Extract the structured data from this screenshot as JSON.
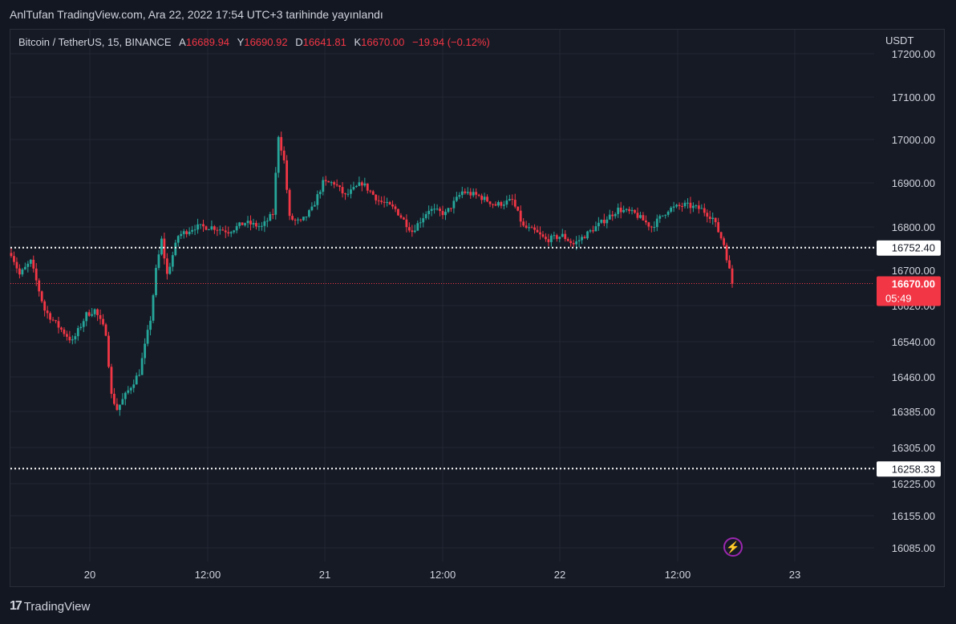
{
  "header": {
    "published": "AnlTufan TradingView.com, Ara 22, 2022 17:54 UTC+3 tarihinde yayınlandı"
  },
  "legend": {
    "symbol": "Bitcoin / TetherUS, 15, BINANCE",
    "open_label": "A",
    "open": "16689.94",
    "high_label": "Y",
    "high": "16690.92",
    "low_label": "D",
    "low": "16641.81",
    "close_label": "K",
    "close": "16670.00",
    "change": "−19.94 (−0.12%)"
  },
  "currency": "USDT",
  "footer": {
    "brand": "TradingView"
  },
  "colors": {
    "up": "#26a69a",
    "down": "#f23645",
    "background": "#161a25",
    "grid": "#232732",
    "level_line": "#ffffff",
    "price_tag": "#f23645"
  },
  "chart_data": {
    "type": "candlestick",
    "price_axis": {
      "ticks": [
        "17200.00",
        "17100.00",
        "17000.00",
        "16900.00",
        "16800.00",
        "16700.00",
        "16620.00",
        "16540.00",
        "16460.00",
        "16385.00",
        "16305.00",
        "16225.00",
        "16155.00",
        "16085.00"
      ],
      "scale": "non-linear"
    },
    "time_axis": {
      "ticks": [
        "20",
        "12:00",
        "21",
        "12:00",
        "22",
        "12:00",
        "23"
      ]
    },
    "levels": [
      {
        "label": "16752.40",
        "value": 16752.4,
        "style": "dotted"
      },
      {
        "label": "16258.33",
        "value": 16258.33,
        "style": "dotted"
      }
    ],
    "last_price": {
      "label": "16670.00",
      "countdown": "05:49",
      "value": 16670.0
    },
    "anchors": [
      {
        "t": 0,
        "p": 16740
      },
      {
        "t": 3,
        "p": 16690
      },
      {
        "t": 7,
        "p": 16720
      },
      {
        "t": 12,
        "p": 16610
      },
      {
        "t": 16,
        "p": 16580
      },
      {
        "t": 22,
        "p": 16540
      },
      {
        "t": 27,
        "p": 16600
      },
      {
        "t": 30,
        "p": 16610
      },
      {
        "t": 34,
        "p": 16560
      },
      {
        "t": 36,
        "p": 16420
      },
      {
        "t": 38,
        "p": 16390
      },
      {
        "t": 42,
        "p": 16430
      },
      {
        "t": 46,
        "p": 16470
      },
      {
        "t": 50,
        "p": 16590
      },
      {
        "t": 52,
        "p": 16700
      },
      {
        "t": 54,
        "p": 16770
      },
      {
        "t": 56,
        "p": 16690
      },
      {
        "t": 60,
        "p": 16780
      },
      {
        "t": 66,
        "p": 16800
      },
      {
        "t": 72,
        "p": 16800
      },
      {
        "t": 78,
        "p": 16790
      },
      {
        "t": 84,
        "p": 16810
      },
      {
        "t": 90,
        "p": 16800
      },
      {
        "t": 94,
        "p": 16830
      },
      {
        "t": 96,
        "p": 17010
      },
      {
        "t": 98,
        "p": 16950
      },
      {
        "t": 100,
        "p": 16820
      },
      {
        "t": 104,
        "p": 16810
      },
      {
        "t": 108,
        "p": 16840
      },
      {
        "t": 112,
        "p": 16900
      },
      {
        "t": 116,
        "p": 16900
      },
      {
        "t": 120,
        "p": 16870
      },
      {
        "t": 126,
        "p": 16900
      },
      {
        "t": 132,
        "p": 16860
      },
      {
        "t": 138,
        "p": 16840
      },
      {
        "t": 144,
        "p": 16790
      },
      {
        "t": 150,
        "p": 16840
      },
      {
        "t": 156,
        "p": 16830
      },
      {
        "t": 162,
        "p": 16880
      },
      {
        "t": 168,
        "p": 16870
      },
      {
        "t": 174,
        "p": 16850
      },
      {
        "t": 180,
        "p": 16860
      },
      {
        "t": 184,
        "p": 16800
      },
      {
        "t": 188,
        "p": 16790
      },
      {
        "t": 192,
        "p": 16770
      },
      {
        "t": 198,
        "p": 16780
      },
      {
        "t": 202,
        "p": 16760
      },
      {
        "t": 206,
        "p": 16780
      },
      {
        "t": 212,
        "p": 16810
      },
      {
        "t": 218,
        "p": 16840
      },
      {
        "t": 224,
        "p": 16830
      },
      {
        "t": 230,
        "p": 16800
      },
      {
        "t": 236,
        "p": 16840
      },
      {
        "t": 242,
        "p": 16850
      },
      {
        "t": 248,
        "p": 16840
      },
      {
        "t": 252,
        "p": 16820
      },
      {
        "t": 256,
        "p": 16760
      },
      {
        "t": 258,
        "p": 16700
      },
      {
        "t": 259,
        "p": 16670
      }
    ]
  }
}
